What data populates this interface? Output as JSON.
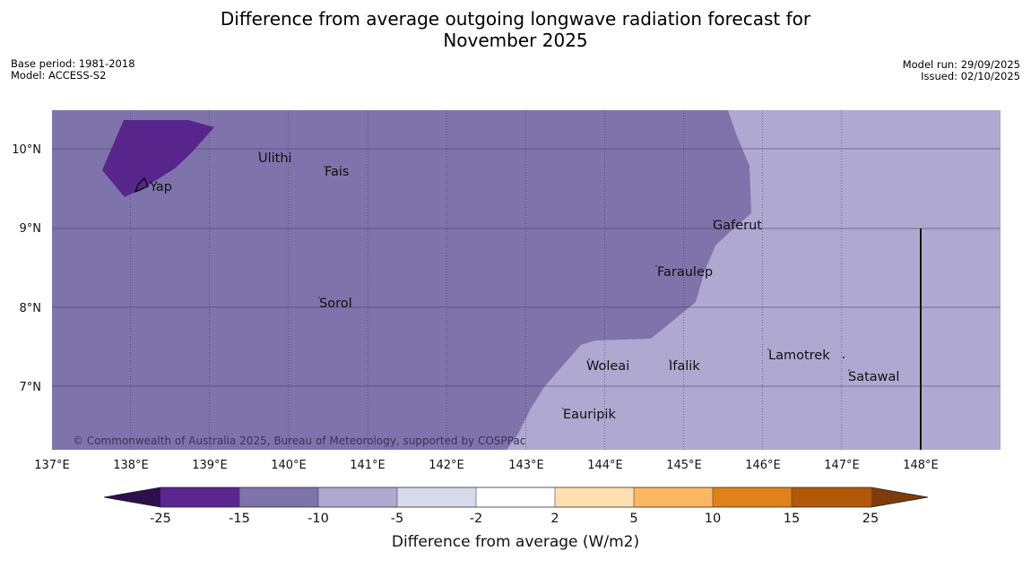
{
  "header": {
    "title_line1": "Difference from average outgoing longwave radiation forecast for",
    "title_line2": "November 2025",
    "base_period": "Base period: 1981-2018",
    "model": "Model: ACCESS-S2",
    "model_run": "Model run: 29/09/2025",
    "issued": "Issued: 02/10/2025"
  },
  "map": {
    "lat_labels": [
      "10°N",
      "9°N",
      "8°N",
      "7°N"
    ],
    "lon_labels": [
      "137°E",
      "138°E",
      "139°E",
      "140°E",
      "141°E",
      "142°E",
      "143°E",
      "144°E",
      "145°E",
      "146°E",
      "147°E",
      "148°E"
    ],
    "places": [
      "Ulithi",
      "Fais",
      "Yap",
      "Gaferut",
      "Faraulep",
      "Sorol",
      "Woleai",
      "Ifalik",
      "Lamotrek",
      "Satawal",
      "Eauripik"
    ],
    "copyright": "© Commonwealth of Australia 2025, Bureau of Meteorology, supported by COSPPac",
    "colors": {
      "very_strong_negative": "#58258c",
      "strong_negative": "#7f73ab",
      "moderate_negative": "#afa8d0"
    }
  },
  "colorbar": {
    "title": "Difference from average (W/m2)",
    "tick_labels": [
      "-25",
      "-15",
      "-10",
      "-5",
      "-2",
      "2",
      "5",
      "10",
      "15",
      "25"
    ],
    "colors": [
      "#2d0f4e",
      "#5a2690",
      "#7f73ab",
      "#afa8d0",
      "#d9d9ec",
      "#ffffff",
      "#ffdfb1",
      "#fbb662",
      "#e0821a",
      "#b15908",
      "#7c3d0a"
    ]
  }
}
